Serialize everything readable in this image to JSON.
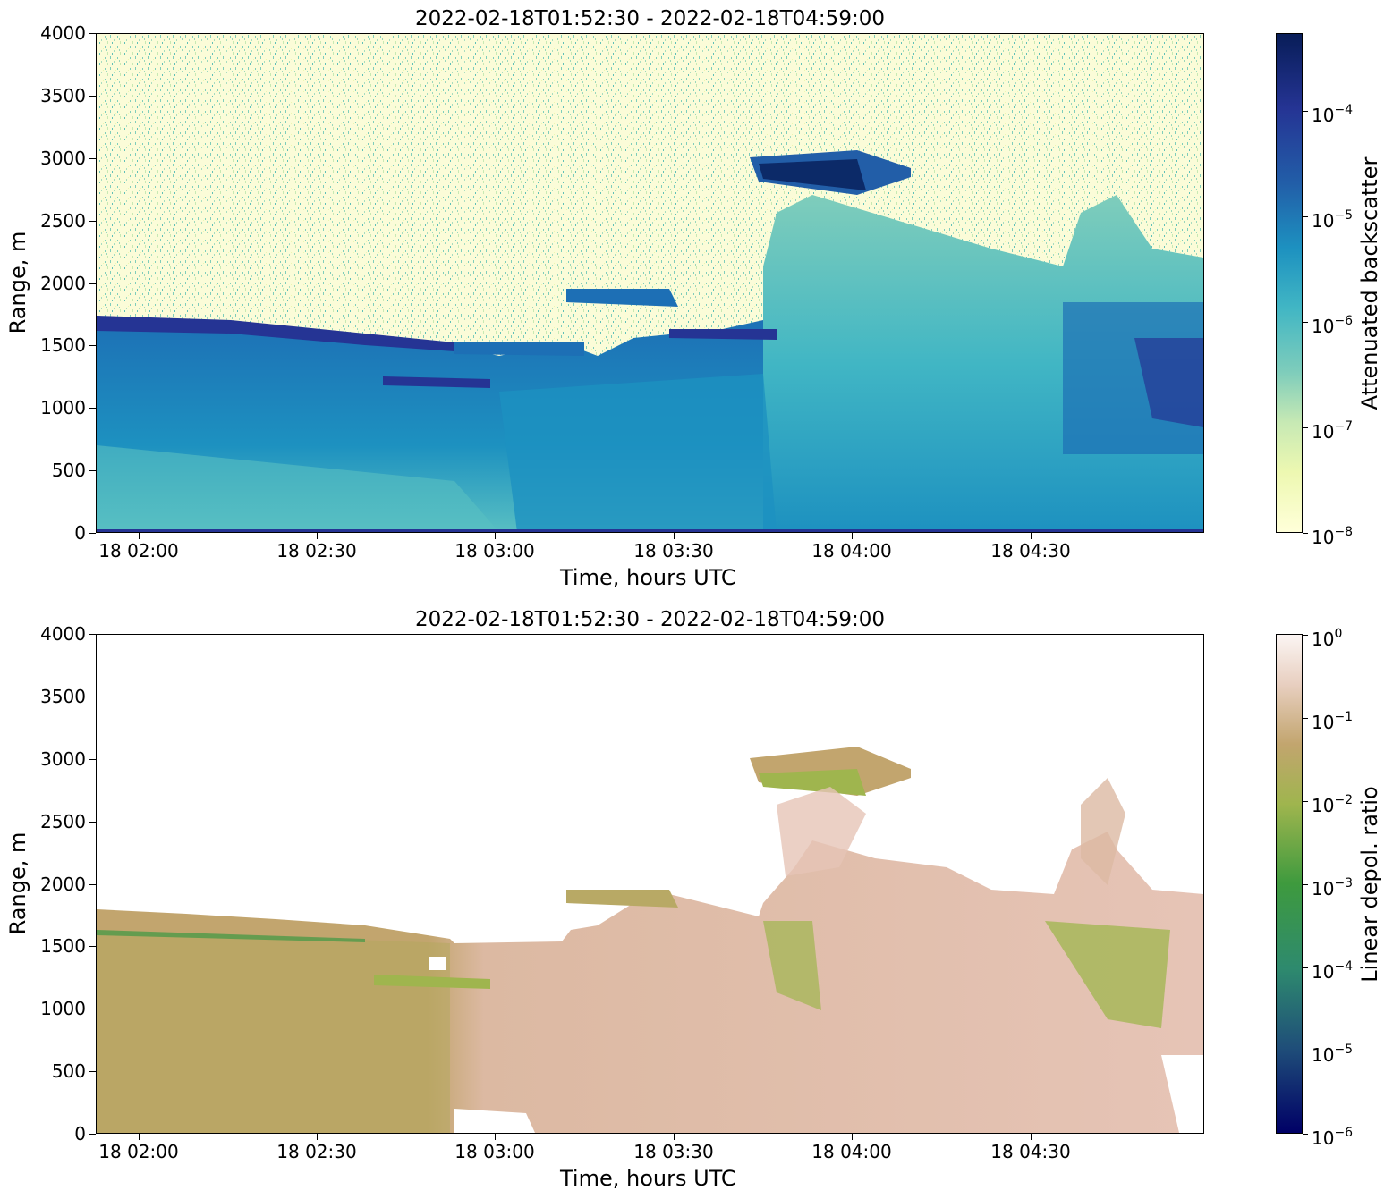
{
  "chart_data": [
    {
      "type": "heatmap",
      "title": "2022-02-18T01:52:30 - 2022-02-18T04:59:00",
      "xlabel": "Time, hours UTC",
      "ylabel": "Range, m",
      "xticks": [
        "18 02:00",
        "18 02:30",
        "18 03:00",
        "18 03:30",
        "18 04:00",
        "18 04:30"
      ],
      "yticks": [
        "0",
        "500",
        "1000",
        "1500",
        "2000",
        "2500",
        "3000",
        "3500",
        "4000"
      ],
      "ylim": [
        0,
        4000
      ],
      "xlim": [
        "01:52:30",
        "04:59:00"
      ],
      "colorbar": {
        "label": "Attenuated backscatter",
        "scale": "log",
        "range": [
          1e-08,
          0.0006
        ],
        "ticks": [
          {
            "base": "10",
            "exp": "−8"
          },
          {
            "base": "10",
            "exp": "−7"
          },
          {
            "base": "10",
            "exp": "−6"
          },
          {
            "base": "10",
            "exp": "−5"
          },
          {
            "base": "10",
            "exp": "−4"
          }
        ],
        "colormap": [
          "#ffffd9",
          "#edf8b1",
          "#c7e9b4",
          "#7fcdbb",
          "#41b6c4",
          "#1d91c0",
          "#225ea8",
          "#253494",
          "#081d58"
        ]
      }
    },
    {
      "type": "heatmap",
      "title": "2022-02-18T01:52:30 - 2022-02-18T04:59:00",
      "xlabel": "Time, hours UTC",
      "ylabel": "Range, m",
      "xticks": [
        "18 02:00",
        "18 02:30",
        "18 03:00",
        "18 03:30",
        "18 04:00",
        "18 04:30"
      ],
      "yticks": [
        "0",
        "500",
        "1000",
        "1500",
        "2000",
        "2500",
        "3000",
        "3500",
        "4000"
      ],
      "ylim": [
        0,
        4000
      ],
      "xlim": [
        "01:52:30",
        "04:59:00"
      ],
      "colorbar": {
        "label": "Linear depol. ratio",
        "scale": "log",
        "range": [
          1e-06,
          1
        ],
        "ticks": [
          {
            "base": "10",
            "exp": "−6"
          },
          {
            "base": "10",
            "exp": "−5"
          },
          {
            "base": "10",
            "exp": "−4"
          },
          {
            "base": "10",
            "exp": "−3"
          },
          {
            "base": "10",
            "exp": "−2"
          },
          {
            "base": "10",
            "exp": "−1"
          },
          {
            "base": "10",
            "exp": "0"
          }
        ],
        "colormap": [
          "#000066",
          "#1f4e79",
          "#2e8a6e",
          "#3e9a3e",
          "#9fb54e",
          "#c2a56e",
          "#e8cfc0",
          "#fbf5f3"
        ]
      }
    }
  ]
}
